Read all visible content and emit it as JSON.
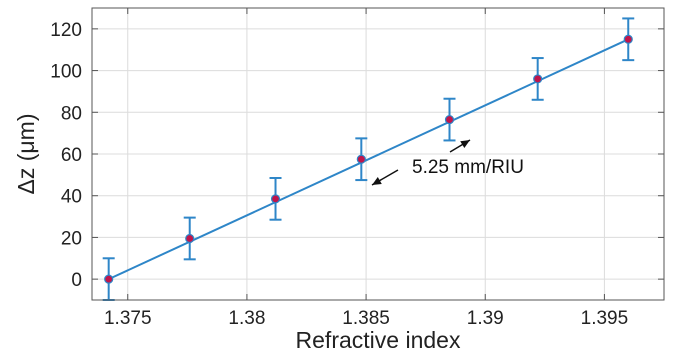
{
  "chart_data": {
    "type": "scatter",
    "xlabel": "Refractive index",
    "ylabel": "Δz (μm)",
    "xlim": [
      1.3735,
      1.3975
    ],
    "ylim": [
      -10,
      130
    ],
    "x_ticks": [
      1.375,
      1.38,
      1.385,
      1.39,
      1.395
    ],
    "x_tick_labels": [
      "1.375",
      "1.38",
      "1.385",
      "1.39",
      "1.395"
    ],
    "y_ticks": [
      0,
      20,
      40,
      60,
      80,
      100,
      120
    ],
    "y_tick_labels": [
      "0",
      "20",
      "40",
      "60",
      "80",
      "100",
      "120"
    ],
    "grid": true,
    "series": [
      {
        "x": [
          1.3742,
          1.3776,
          1.3812,
          1.3848,
          1.3885,
          1.3922,
          1.396
        ],
        "y": [
          0,
          19.5,
          38.5,
          57.5,
          76.5,
          96,
          115
        ],
        "error": [
          10,
          10,
          10,
          10,
          10,
          10,
          10
        ]
      }
    ],
    "fit_line": {
      "x": [
        1.3742,
        1.396
      ],
      "y": [
        0,
        115
      ]
    },
    "annotation": {
      "text": "5.25 mm/RIU"
    },
    "colors": {
      "line": "#2e86c8",
      "marker_face": "#c0154b",
      "grid": "#dcdcdc",
      "axis": "#555555"
    }
  }
}
